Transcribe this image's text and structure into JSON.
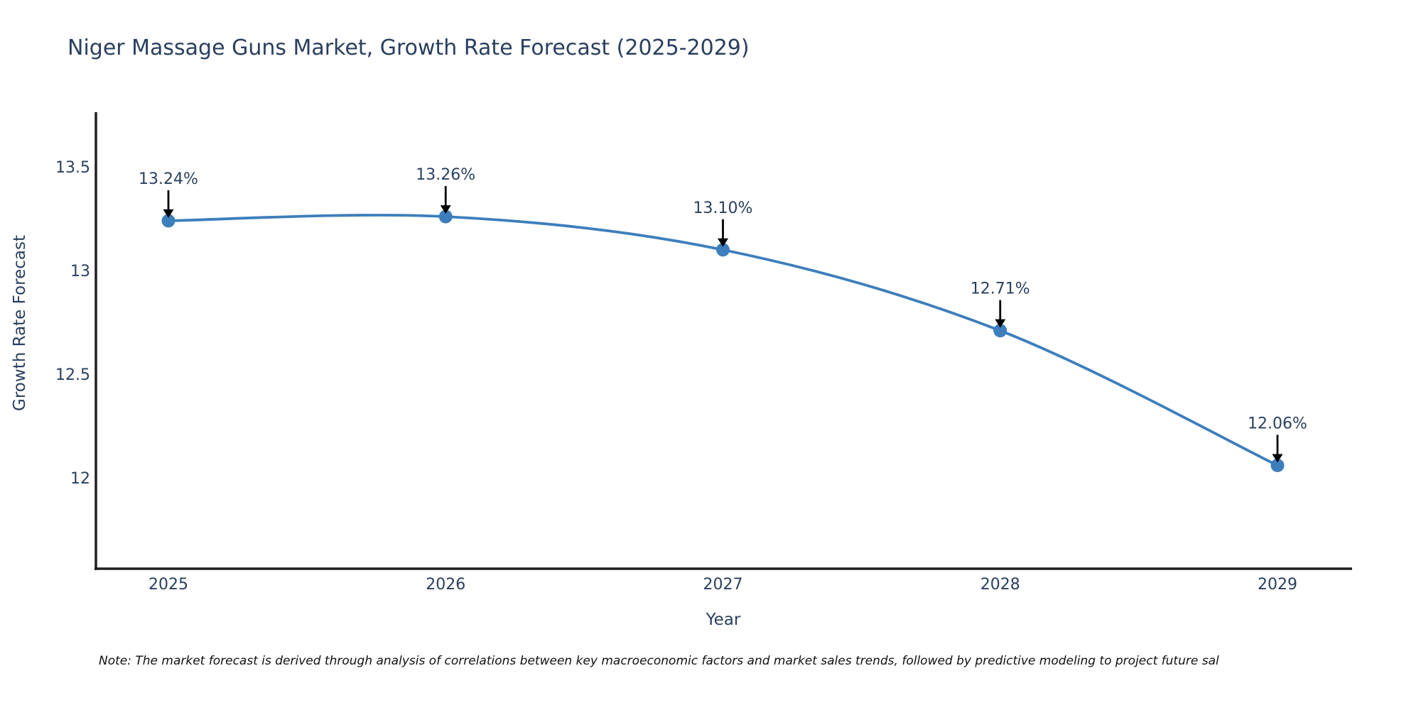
{
  "title": "Niger Massage Guns Market, Growth Rate Forecast (2025-2029)",
  "note": "Note: The market forecast is derived through analysis of correlations between key macroeconomic factors and market sales trends, followed by predictive modeling to project future sal",
  "chart_data": {
    "type": "line",
    "title": "Niger Massage Guns Market, Growth Rate Forecast (2025-2029)",
    "xlabel": "Year",
    "ylabel": "Growth Rate Forecast",
    "x": [
      2025,
      2026,
      2027,
      2028,
      2029
    ],
    "y": [
      13.24,
      13.26,
      13.1,
      12.71,
      12.06
    ],
    "point_labels": [
      "13.24%",
      "13.26%",
      "13.10%",
      "12.71%",
      "12.06%"
    ],
    "x_tick_labels": [
      "2025",
      "2026",
      "2027",
      "2028",
      "2029"
    ],
    "y_ticks": [
      12,
      12.5,
      13,
      13.5
    ],
    "y_tick_labels": [
      "12",
      "12.5",
      "13",
      "13.5"
    ],
    "ylim": [
      11.56,
      13.76
    ],
    "line_shape": "spline",
    "grid": false,
    "legend": "none",
    "colors": {
      "line": "#3d7ebc",
      "marker": "#3d7ebc",
      "text": "#2a3f5f",
      "axis": "#1f1f1f",
      "arrow": "#000000",
      "background": "#ffffff"
    }
  }
}
